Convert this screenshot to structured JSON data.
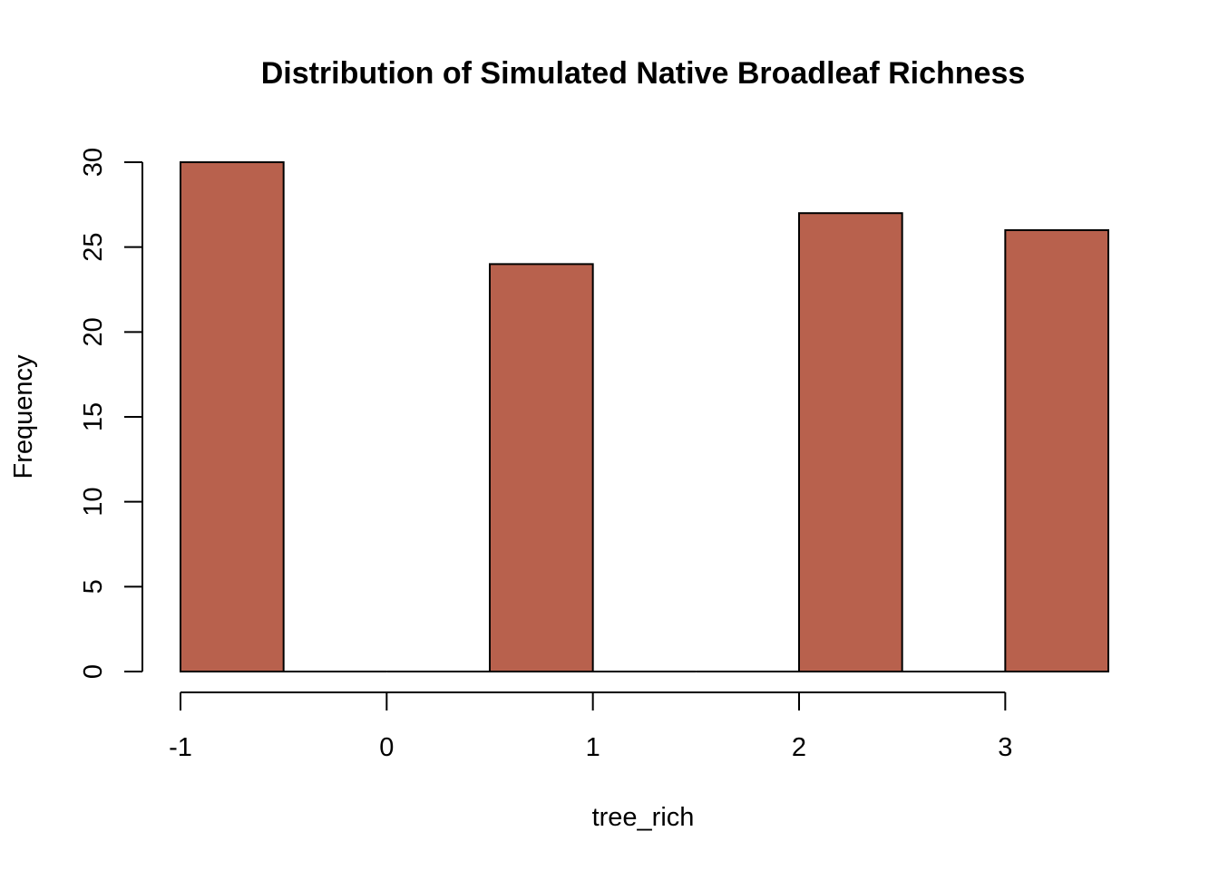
{
  "chart_data": {
    "type": "histogram",
    "title": "Distribution of Simulated Native Broadleaf Richness",
    "xlabel": "tree_rich",
    "ylabel": "Frequency",
    "bins": [
      {
        "start": -1.0,
        "end": -0.5,
        "count": 30
      },
      {
        "start": -0.5,
        "end": 0.0,
        "count": 0
      },
      {
        "start": 0.0,
        "end": 0.5,
        "count": 0
      },
      {
        "start": 0.5,
        "end": 1.0,
        "count": 24
      },
      {
        "start": 1.0,
        "end": 1.5,
        "count": 0
      },
      {
        "start": 1.5,
        "end": 2.0,
        "count": 0
      },
      {
        "start": 2.0,
        "end": 2.5,
        "count": 27
      },
      {
        "start": 2.5,
        "end": 3.0,
        "count": 0
      },
      {
        "start": 3.0,
        "end": 3.5,
        "count": 26
      }
    ],
    "xlim": [
      -1,
      3.5
    ],
    "ylim": [
      0,
      30
    ],
    "xticks": [
      -1,
      0,
      1,
      2,
      3
    ],
    "yticks": [
      0,
      5,
      10,
      15,
      20,
      25,
      30
    ],
    "bar_color": "#B8614D",
    "grid": false,
    "legend": "none"
  }
}
